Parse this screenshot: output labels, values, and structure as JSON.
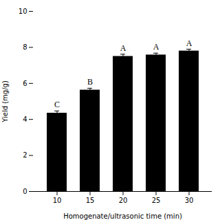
{
  "chart_data": {
    "type": "bar",
    "categories": [
      "10",
      "15",
      "20",
      "25",
      "30"
    ],
    "values": [
      4.35,
      5.63,
      7.5,
      7.58,
      7.8
    ],
    "errors": [
      0.12,
      0.1,
      0.12,
      0.1,
      0.1
    ],
    "letters": [
      "C",
      "B",
      "A",
      "A",
      "A"
    ],
    "xlabel": "Homogenate/ultrasonic time (min)",
    "ylabel": "Yield (mg/g)",
    "ylim": [
      0,
      10
    ],
    "yticks": [
      0,
      2,
      4,
      6,
      8,
      10
    ],
    "grid": false
  }
}
